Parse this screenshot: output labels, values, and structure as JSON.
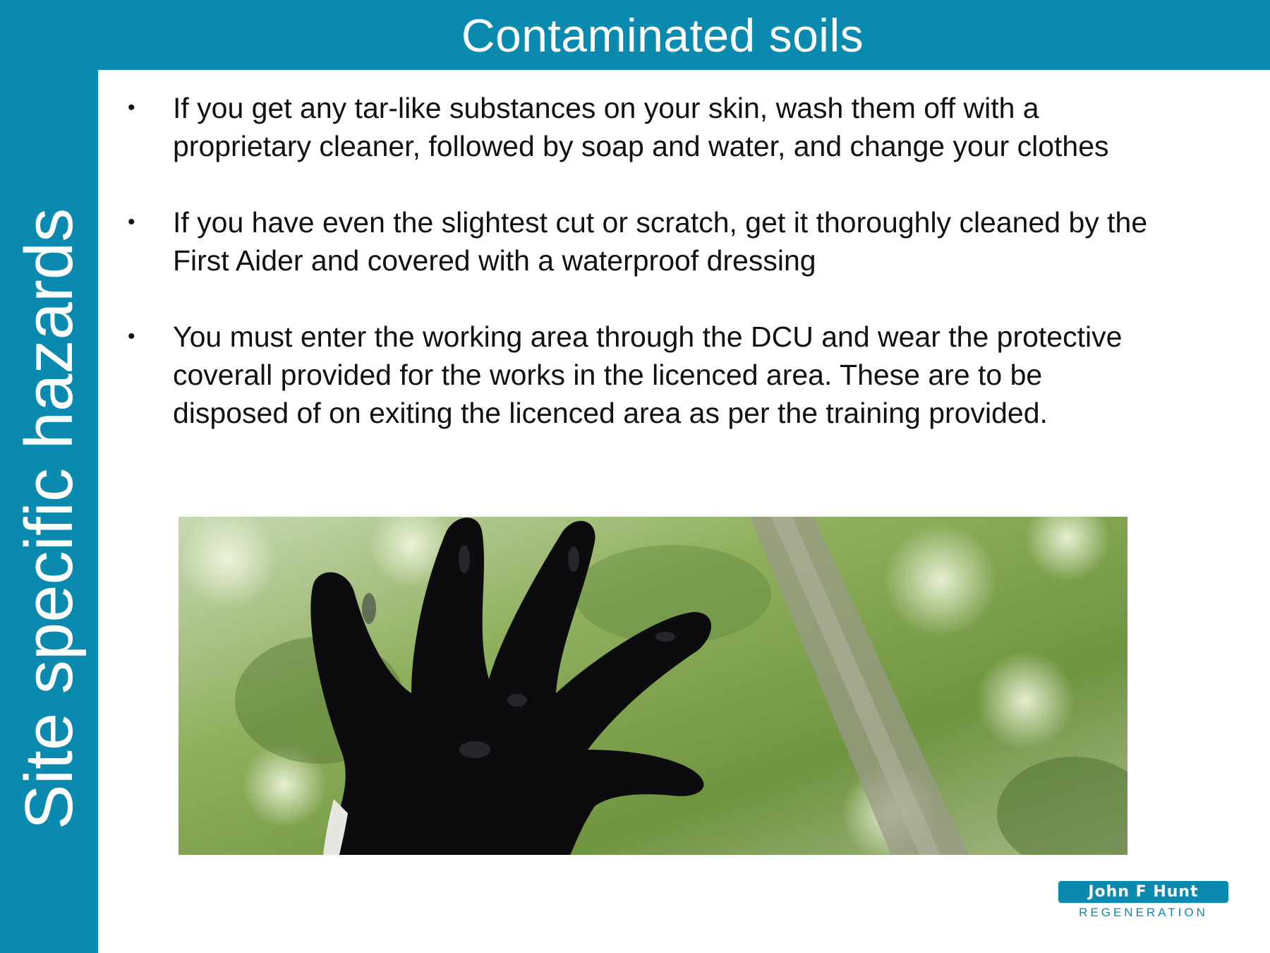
{
  "slide": {
    "title": "Contaminated soils",
    "side_title": "Site specific hazards"
  },
  "bullets": [
    {
      "marker": "•",
      "text": "If you get any tar-like substances on your skin, wash them off with a\nproprietary cleaner, followed by soap and water, and change your clothes"
    },
    {
      "marker": "•",
      "text": "If you have even the slightest cut or scratch, get it thoroughly cleaned by the\nFirst Aider and covered with a waterproof dressing"
    },
    {
      "marker": "•",
      "text": "You must enter the working area through the DCU and wear the protective\ncoverall provided for the works in the licenced area. These are to be\ndisposed of on exiting the licenced area as per the training provided."
    }
  ],
  "logo": {
    "name": "John F Hunt",
    "sub": "REGENERATION"
  },
  "colors": {
    "brand": "#0a8aae"
  }
}
